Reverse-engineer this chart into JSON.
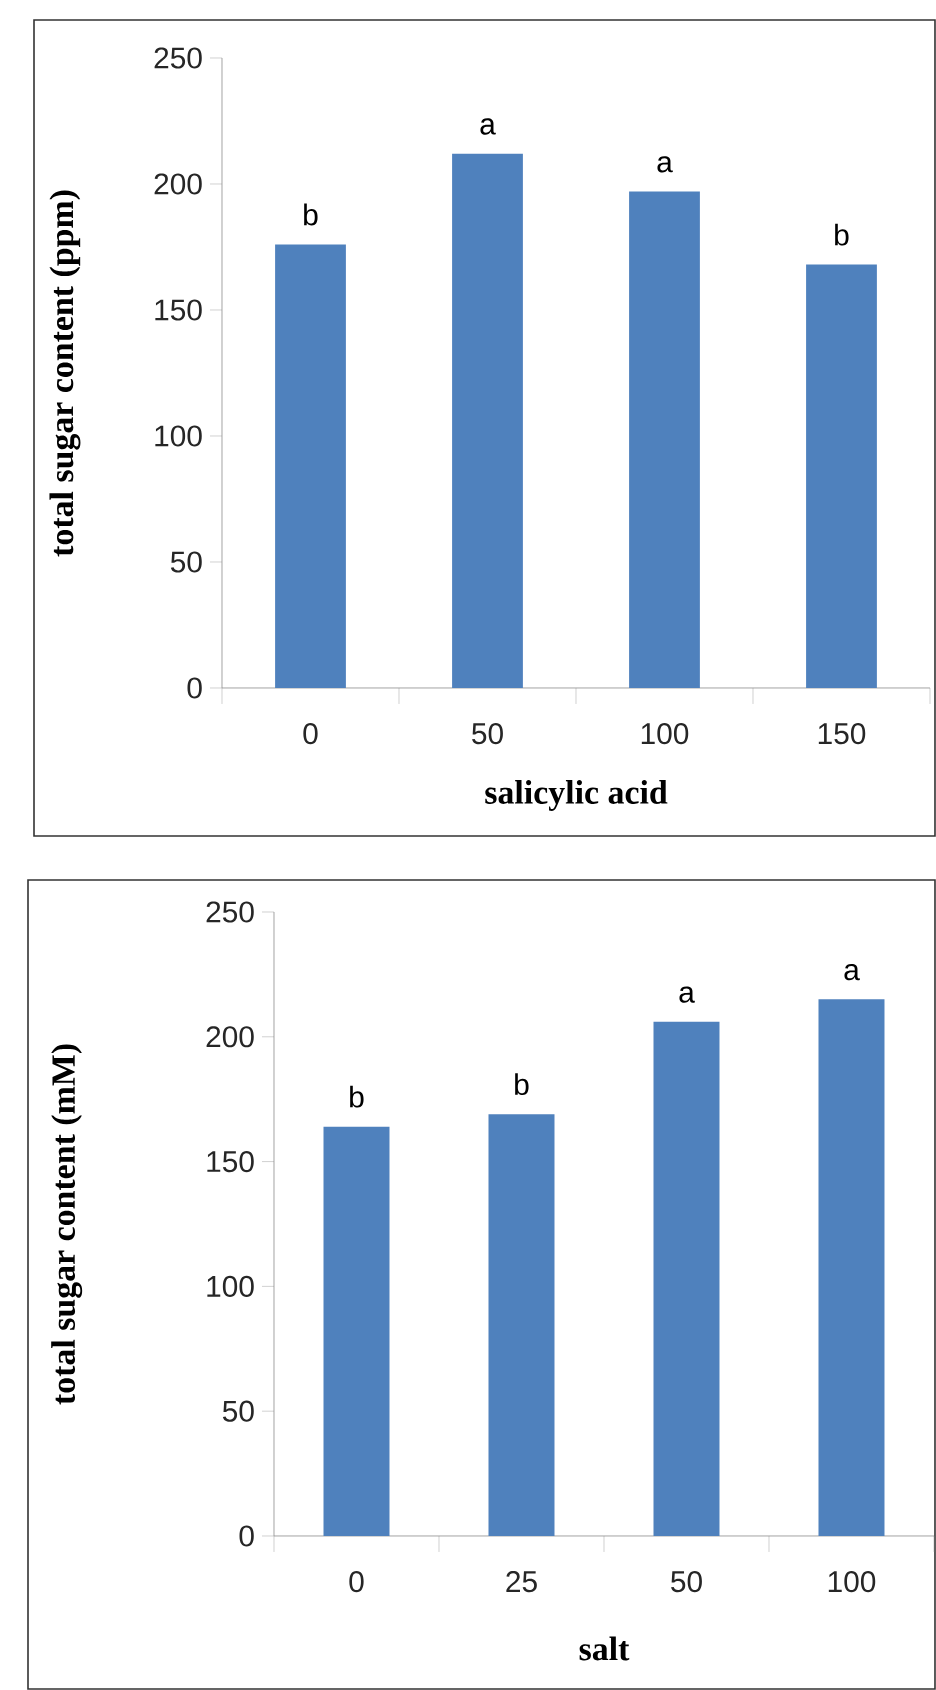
{
  "chart_data": [
    {
      "type": "bar",
      "categories": [
        "0",
        "50",
        "100",
        "150"
      ],
      "values": [
        176,
        212,
        197,
        168
      ],
      "color": "#4f81bd",
      "xlabel": "salicylic  acid",
      "ylabel": "total sugar content (ppm)",
      "ylim": [
        0,
        250
      ],
      "yticks": [
        0,
        50,
        100,
        150,
        200,
        250
      ],
      "annotations": [
        {
          "text": "b",
          "x": "0",
          "y": 176
        },
        {
          "text": "a",
          "x": "50",
          "y": 212
        },
        {
          "text": "a",
          "x": "100",
          "y": 197
        },
        {
          "text": "b",
          "x": "150",
          "y": 168
        }
      ]
    },
    {
      "type": "bar",
      "categories": [
        "0",
        "25",
        "50",
        "100"
      ],
      "values": [
        164,
        169,
        206,
        215
      ],
      "color": "#4f81bd",
      "xlabel": "salt",
      "ylabel": "total sugar content (mM)",
      "ylim": [
        0,
        250
      ],
      "yticks": [
        0,
        50,
        100,
        150,
        200,
        250
      ],
      "annotations": [
        {
          "text": "b",
          "x": "0",
          "y": 164
        },
        {
          "text": "b",
          "x": "25",
          "y": 169
        },
        {
          "text": "a",
          "x": "50",
          "y": 206
        },
        {
          "text": "a",
          "x": "100",
          "y": 215
        }
      ]
    }
  ]
}
